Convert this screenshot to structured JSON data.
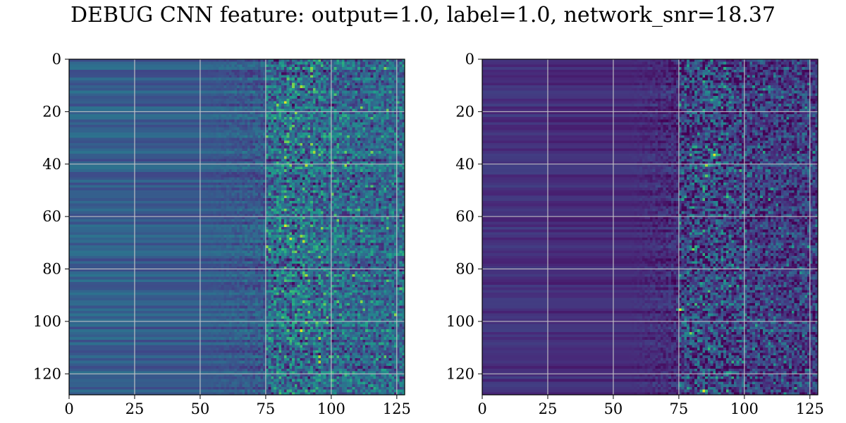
{
  "title": "DEBUG CNN feature: output=1.0, label=1.0, network_snr=18.37",
  "colormap": "viridis",
  "grid": true,
  "chart_data": [
    {
      "type": "heatmap",
      "title": "",
      "xlabel": "",
      "ylabel": "",
      "shape": [
        128,
        128
      ],
      "xlim": [
        0,
        128
      ],
      "ylim": [
        128,
        0
      ],
      "xticks": [
        0,
        25,
        50,
        75,
        100,
        125
      ],
      "yticks": [
        0,
        20,
        40,
        60,
        80,
        100,
        120
      ],
      "value_range": [
        0,
        1
      ],
      "background_level": 0.28,
      "noise_onset_column": 50,
      "dense_onset_column": 75,
      "bright_spots": [
        {
          "col": 82,
          "row": 16,
          "value": 0.95
        },
        {
          "col": 83,
          "row": 31,
          "value": 0.8
        },
        {
          "col": 82,
          "row": 63,
          "value": 0.95
        },
        {
          "col": 84,
          "row": 68,
          "value": 0.95
        },
        {
          "col": 88,
          "row": 103,
          "value": 0.95
        },
        {
          "col": 111,
          "row": 65,
          "value": 0.75
        },
        {
          "col": 75,
          "row": 65,
          "value": 0.7
        },
        {
          "col": 80,
          "row": 43,
          "value": 0.6
        },
        {
          "col": 83,
          "row": 52,
          "value": 0.6
        }
      ]
    },
    {
      "type": "heatmap",
      "title": "",
      "xlabel": "",
      "ylabel": "",
      "shape": [
        128,
        128
      ],
      "xlim": [
        0,
        128
      ],
      "ylim": [
        128,
        0
      ],
      "xticks": [
        0,
        25,
        50,
        75,
        100,
        125
      ],
      "yticks": [
        0,
        20,
        40,
        60,
        80,
        100,
        120
      ],
      "value_range": [
        0,
        1
      ],
      "background_level": 0.12,
      "noise_onset_column": 55,
      "dense_onset_column": 75,
      "bright_spots": [
        {
          "col": 88,
          "row": 36,
          "value": 0.95
        },
        {
          "col": 75,
          "row": 95,
          "value": 0.95
        },
        {
          "col": 84,
          "row": 126,
          "value": 0.95
        },
        {
          "col": 85,
          "row": 40,
          "value": 0.85
        },
        {
          "col": 80,
          "row": 72,
          "value": 0.8
        },
        {
          "col": 79,
          "row": 104,
          "value": 0.8
        },
        {
          "col": 85,
          "row": 44,
          "value": 0.75
        },
        {
          "col": 93,
          "row": 52,
          "value": 0.7
        },
        {
          "col": 87,
          "row": 15,
          "value": 0.65
        }
      ]
    }
  ]
}
